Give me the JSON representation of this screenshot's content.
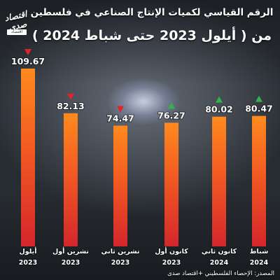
{
  "header": {
    "title_line1": "الرقم القياسي لكميات الإنتاج الصناعي في فلسطين",
    "title_line2": "من ( أيلول 2023 حتى شباط 2024 )"
  },
  "logo": {
    "text": "اقتصاد صدى",
    "badge": "اقتصاد"
  },
  "footer": {
    "source": "المصدر: الإحصاء الفلسطيني +اقتصاد صدى"
  },
  "colors": {
    "bar_top": "#ff8a1e",
    "bar_bottom": "#d4262c",
    "up": "#34b34a",
    "down": "#e0242c"
  },
  "chart_data": {
    "type": "bar",
    "categories": [
      {
        "month": "أيلول",
        "year": "2023"
      },
      {
        "month": "تشرين أول",
        "year": "2023"
      },
      {
        "month": "تشرين ثاني",
        "year": "2023"
      },
      {
        "month": "كانون أول",
        "year": "2023"
      },
      {
        "month": "كانون ثاني",
        "year": "2024"
      },
      {
        "month": "شباط",
        "year": "2024"
      }
    ],
    "values": [
      109.67,
      82.13,
      74.47,
      76.27,
      80.02,
      80.47
    ],
    "value_labels": [
      "109.67",
      "82.13",
      "74.47",
      "76.27",
      "80.02",
      "80.47"
    ],
    "trend": [
      "down",
      "down",
      "down",
      "up",
      "up",
      "up"
    ],
    "ylim": [
      0,
      109.67
    ],
    "grid": false,
    "title": "الرقم القياسي لكميات الإنتاج الصناعي في فلسطين"
  }
}
